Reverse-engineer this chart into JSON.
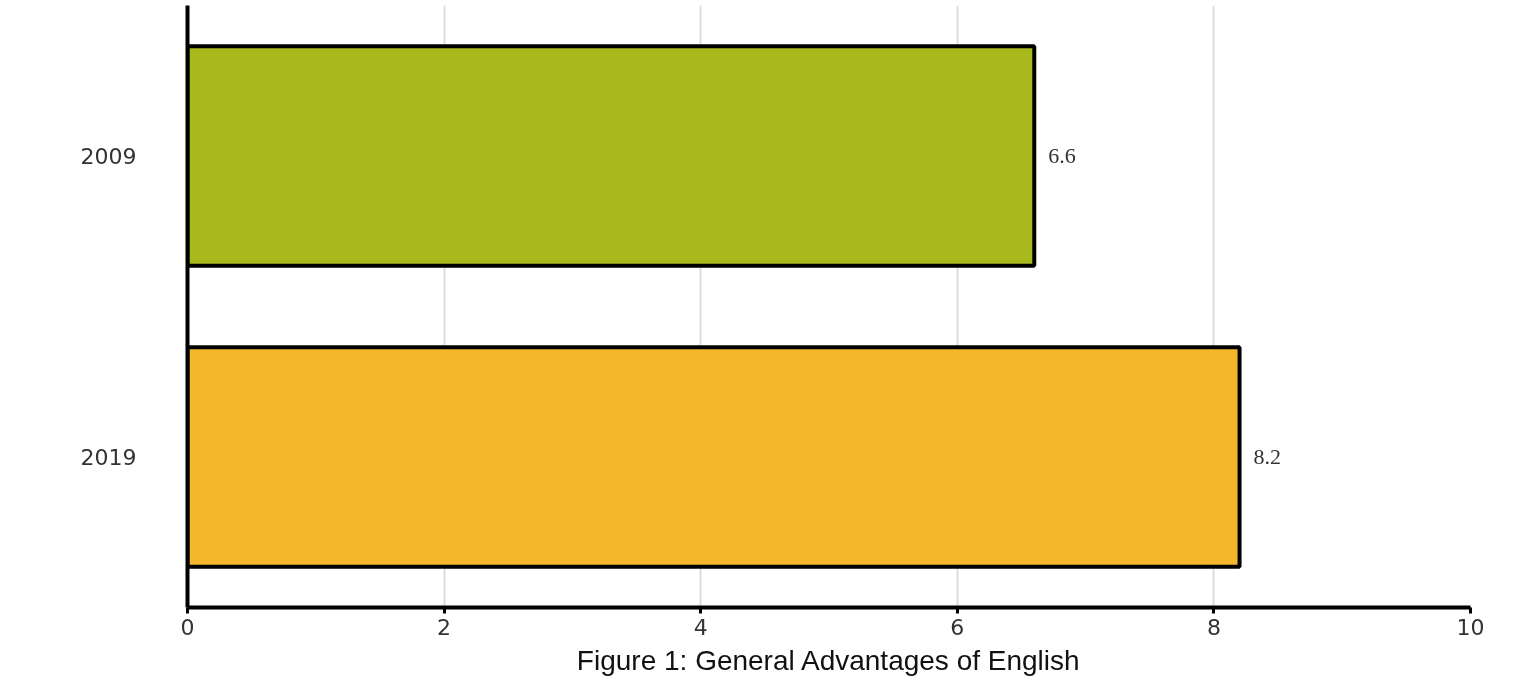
{
  "chart_data": {
    "type": "bar",
    "orientation": "horizontal",
    "categories": [
      "2009",
      "2019"
    ],
    "values": [
      6.6,
      8.2
    ],
    "colors": [
      "#a9b81c",
      "#f4b62a"
    ],
    "xlim": [
      0,
      10
    ],
    "xticks": [
      0,
      2,
      4,
      6,
      8,
      10
    ],
    "grid": "x",
    "data_labels": true,
    "annotations": [
      "Figure 1: General Advantages of English"
    ]
  }
}
